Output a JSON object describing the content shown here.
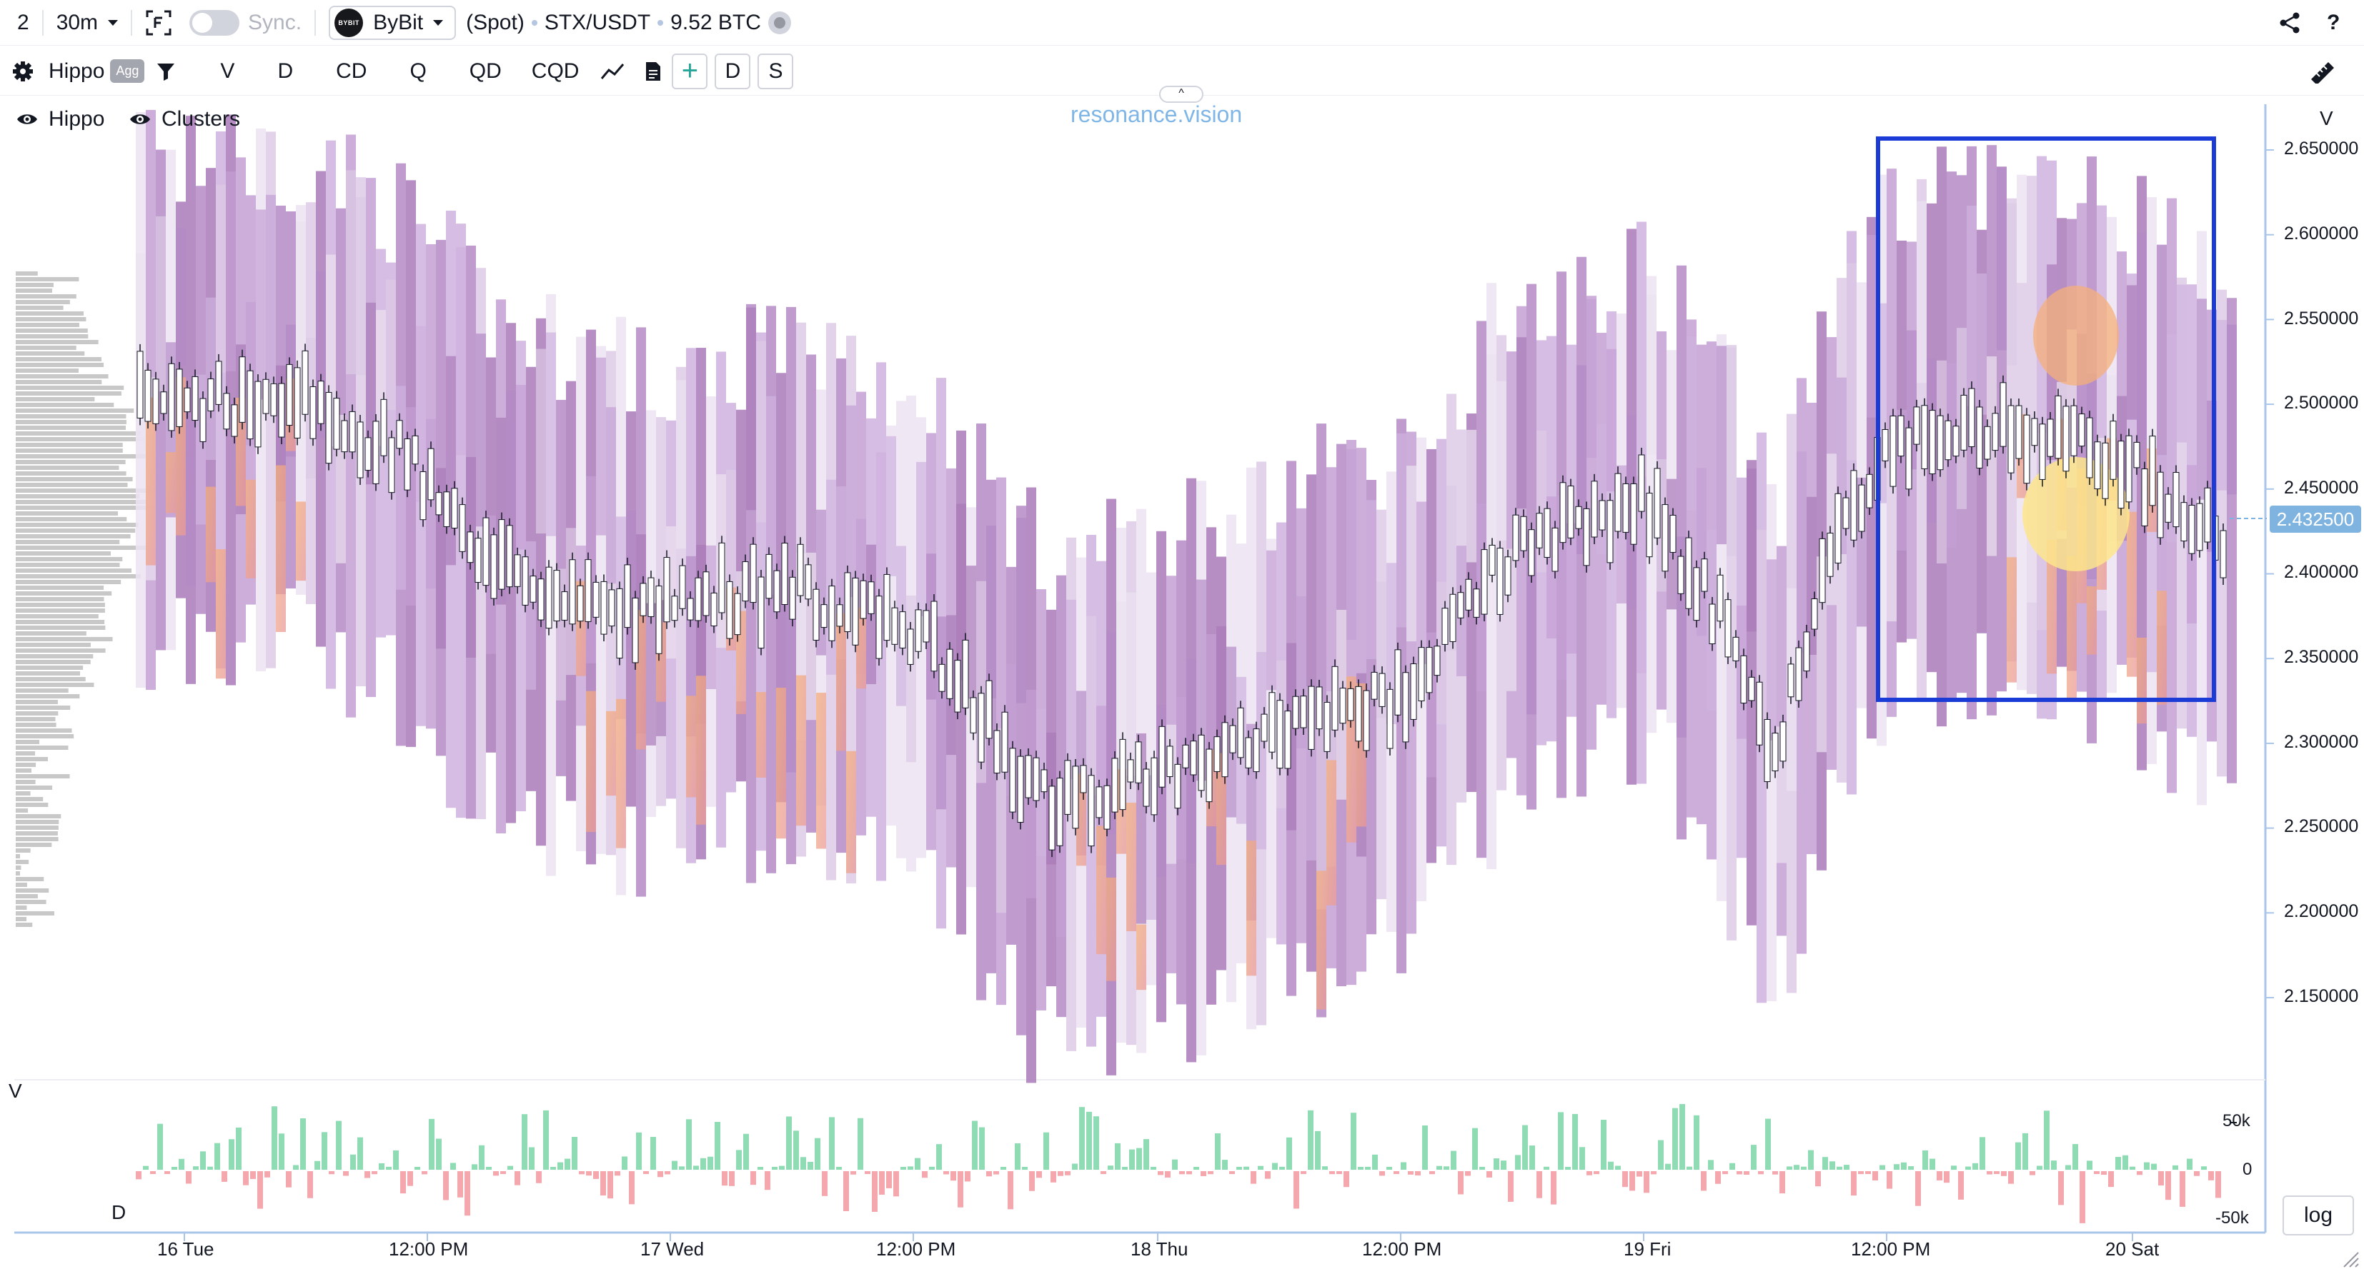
{
  "toolbar": {
    "layout_count": "2",
    "interval": "30m",
    "sync_label": "Sync.",
    "exchange": "ByBit",
    "exchange_logo_text": "BYBIT",
    "market_type": "(Spot)",
    "pair": "STX/USDT",
    "volume": "9.52 BTC",
    "share_icon": "share-icon",
    "help_label": "?"
  },
  "toolbar2": {
    "indicator_name": "Hippo",
    "agg_badge": "Agg",
    "buttons": [
      "V",
      "D",
      "CD",
      "Q",
      "QD",
      "CQD"
    ],
    "d_button": "D",
    "s_button": "S"
  },
  "chart": {
    "brand": "resonance.vision",
    "collapse_label": "^",
    "legend": [
      {
        "icon": "eye-icon",
        "label": "Hippo"
      },
      {
        "icon": "eye-icon",
        "label": "Clusters"
      }
    ],
    "price_axis_label": "V",
    "price_ticks": [
      "2.650000",
      "2.600000",
      "2.550000",
      "2.500000",
      "2.450000",
      "2.400000",
      "2.350000",
      "2.300000",
      "2.250000",
      "2.200000",
      "2.150000"
    ],
    "current_price": "2.432500",
    "time_ticks": [
      "16 Tue",
      "12:00 PM",
      "17 Wed",
      "12:00 PM",
      "18 Thu",
      "12:00 PM",
      "19 Fri",
      "12:00 PM",
      "20 Sat"
    ],
    "volume_pane_label": "V",
    "delta_pane_label": "D",
    "volume_ticks": [
      "50k",
      "0",
      "-50k"
    ],
    "log_button": "log",
    "highlight_color": "#1a3bd6",
    "heat_colors": [
      "#e6dbed",
      "#c9a9d6",
      "#b07fc4",
      "#e99a9a",
      "#f6b07a",
      "#fde58c"
    ]
  }
}
